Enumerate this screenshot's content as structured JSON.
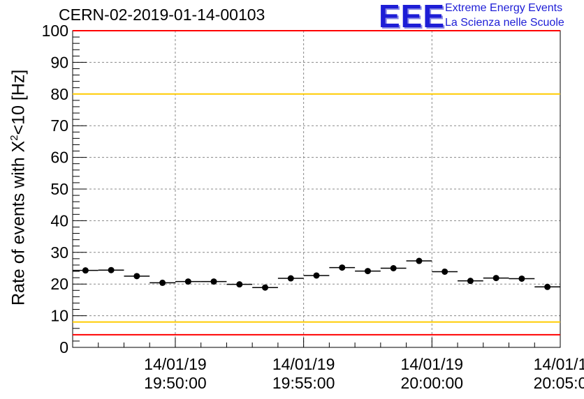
{
  "header": {
    "run_title": "CERN-02-2019-01-14-00103",
    "logo_text": "EEE",
    "logo_line1": "Extreme Energy Events",
    "logo_line2": "La Scienza nelle Scuole"
  },
  "chart_data": {
    "type": "scatter",
    "ylabel_prefix": "Rate of events with X",
    "ylabel_sup": "2",
    "ylabel_suffix": "<10 [Hz]",
    "ylim": [
      0,
      100
    ],
    "y_ticks": [
      "0",
      "10",
      "20",
      "30",
      "40",
      "50",
      "60",
      "70",
      "80",
      "90",
      "100"
    ],
    "xlim": [
      "19:46:00",
      "20:05:00"
    ],
    "x_tick_labels": [
      {
        "date": "14/01/19",
        "time": "19:50:00"
      },
      {
        "date": "14/01/19",
        "time": "19:55:00"
      },
      {
        "date": "14/01/19",
        "time": "20:00:00"
      },
      {
        "date": "14/01/1",
        "time": "20:05:0"
      }
    ],
    "grid": true,
    "bin_width_seconds": 60,
    "series": [
      {
        "x": [
          "19:46:30",
          "19:47:30",
          "19:48:30",
          "19:49:30",
          "19:50:30",
          "19:51:30",
          "19:52:30",
          "19:53:30",
          "19:54:30",
          "19:55:30",
          "19:56:30",
          "19:57:30",
          "19:58:30",
          "19:59:30",
          "20:00:30",
          "20:01:30",
          "20:02:30",
          "20:03:30",
          "20:04:30"
        ],
        "values": [
          24.3,
          24.4,
          22.5,
          20.4,
          20.8,
          20.8,
          19.9,
          18.9,
          21.8,
          22.7,
          25.2,
          24.1,
          25.0,
          27.3,
          23.9,
          21.0,
          21.9,
          21.7,
          19.1
        ]
      }
    ],
    "reference_lines": [
      {
        "value": 100,
        "color": "#ff0000"
      },
      {
        "value": 80,
        "color": "#ffcc00"
      },
      {
        "value": 8,
        "color": "#ffcc00"
      },
      {
        "value": 4,
        "color": "#ff0000"
      }
    ]
  }
}
